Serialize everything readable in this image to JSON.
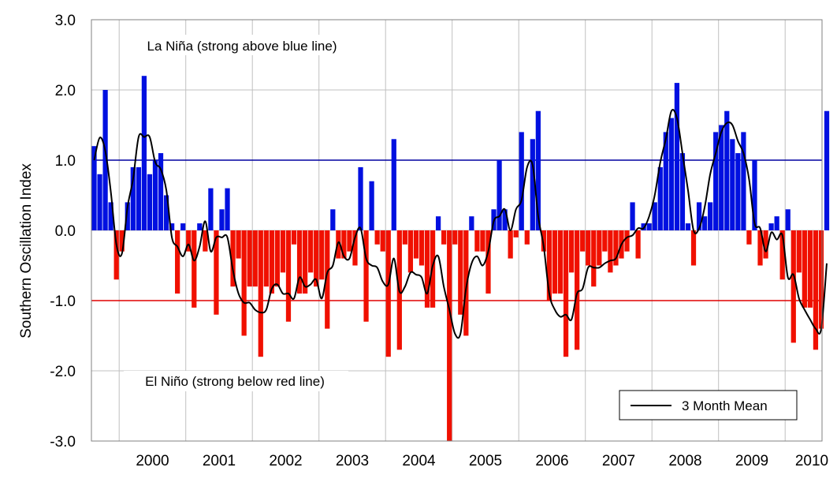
{
  "chart_data": {
    "type": "bar",
    "ylabel": "Southern Oscillation Index",
    "ylim": [
      -3.0,
      3.0
    ],
    "yticks": [
      3.0,
      2.0,
      1.0,
      0.0,
      -1.0,
      -2.0,
      -3.0
    ],
    "ytick_labels": [
      "3.0",
      "2.0",
      "1.0",
      "0.0",
      "-1.0",
      "-2.0",
      "-3.0"
    ],
    "year_labels": [
      "2000",
      "2001",
      "2002",
      "2003",
      "2004",
      "2005",
      "2006",
      "2007",
      "2008",
      "2009",
      "2010"
    ],
    "x_start": "1999-08",
    "grid": true,
    "annotations": {
      "la_nina": "La Niña (strong above blue line)",
      "el_nino": "El Niño (strong below red line)"
    },
    "reference_lines": [
      {
        "value": 1.0,
        "color": "#0000a0"
      },
      {
        "value": -1.0,
        "color": "#e00000"
      }
    ],
    "legend": {
      "position": "bottom-right",
      "label": "3 Month Mean"
    },
    "colors": {
      "positive": "#0010e0",
      "negative": "#f01000",
      "mean_line": "#000000",
      "grid": "#c0c0c0"
    },
    "monthly_soi": [
      1.2,
      0.8,
      2.0,
      0.4,
      -0.7,
      -0.3,
      0.4,
      0.9,
      0.9,
      2.2,
      0.8,
      1.0,
      1.1,
      0.5,
      0.1,
      -0.9,
      0.1,
      -0.3,
      -1.1,
      0.1,
      -0.3,
      0.6,
      -1.2,
      0.3,
      0.6,
      -0.8,
      -0.4,
      -1.5,
      -0.8,
      -0.8,
      -1.8,
      -0.8,
      -0.9,
      -0.8,
      -0.6,
      -1.3,
      -0.2,
      -0.9,
      -0.9,
      -0.6,
      -0.8,
      -0.7,
      -1.4,
      0.3,
      -0.4,
      -0.4,
      -0.3,
      -0.5,
      0.9,
      -1.3,
      0.7,
      -0.2,
      -0.3,
      -1.8,
      1.3,
      -1.7,
      -0.2,
      -0.6,
      -0.4,
      -0.5,
      -1.1,
      -1.1,
      0.2,
      -0.2,
      -3.0,
      -0.2,
      -1.2,
      -1.5,
      0.2,
      -0.3,
      -0.3,
      -0.9,
      0.3,
      1.0,
      0.3,
      -0.4,
      -0.1,
      1.4,
      -0.2,
      1.3,
      1.7,
      -0.3,
      -1.0,
      -0.9,
      -0.9,
      -1.8,
      -0.6,
      -1.7,
      -0.3,
      -0.5,
      -0.8,
      -0.5,
      -0.3,
      -0.6,
      -0.5,
      -0.4,
      -0.3,
      0.4,
      -0.4,
      0.1,
      0.1,
      0.4,
      0.9,
      1.4,
      1.6,
      2.1,
      1.1,
      0.1,
      -0.5,
      0.4,
      0.2,
      0.4,
      1.4,
      1.5,
      1.7,
      1.3,
      1.1,
      1.4,
      -0.2,
      1.0,
      -0.5,
      -0.4,
      0.1,
      0.2,
      -0.7,
      0.3,
      -1.6,
      -0.6,
      -1.1,
      -1.1,
      -1.7,
      -1.4,
      1.7
    ],
    "three_month_mean": [
      1.0,
      1.32,
      1.13,
      0.55,
      -0.2,
      -0.33,
      0.33,
      0.73,
      1.33,
      1.33,
      1.33,
      0.97,
      0.87,
      0.57,
      -0.1,
      -0.23,
      -0.37,
      -0.2,
      -0.43,
      -0.23,
      0.13,
      -0.3,
      -0.1,
      -0.1,
      -0.1,
      -0.57,
      -0.9,
      -1.03,
      -1.03,
      -1.13,
      -1.17,
      -1.13,
      -0.83,
      -0.77,
      -0.9,
      -0.9,
      -0.97,
      -0.67,
      -0.8,
      -0.77,
      -0.7,
      -0.97,
      -0.6,
      -0.5,
      -0.17,
      -0.37,
      -0.4,
      -0.1,
      0.03,
      -0.4,
      -0.5,
      -0.53,
      -0.73,
      -0.77,
      -0.4,
      -0.87,
      -0.8,
      -0.6,
      -0.63,
      -0.67,
      -0.9,
      -0.5,
      -0.37,
      -0.8,
      -1.13,
      -1.47,
      -1.47,
      -0.83,
      -0.47,
      -0.37,
      -0.5,
      -0.3,
      0.13,
      0.2,
      0.3,
      0.0,
      0.3,
      0.43,
      0.9,
      0.93,
      0.2,
      -0.23,
      -0.9,
      -1.13,
      -1.23,
      -1.2,
      -1.27,
      -0.9,
      -0.83,
      -0.53,
      -0.53,
      -0.53,
      -0.47,
      -0.43,
      -0.4,
      -0.2,
      -0.1,
      -0.07,
      0.03,
      0.03,
      0.2,
      0.5,
      0.97,
      1.3,
      1.7,
      1.6,
      1.1,
      0.57,
      0.0,
      0.03,
      0.33,
      0.8,
      1.1,
      1.4,
      1.53,
      1.5,
      1.27,
      1.1,
      0.73,
      0.1,
      0.03,
      -0.3,
      -0.03,
      -0.13,
      -0.07,
      -0.67,
      -0.63,
      -0.97,
      -1.13,
      -1.27,
      -1.4,
      -1.4,
      -0.47
    ]
  }
}
